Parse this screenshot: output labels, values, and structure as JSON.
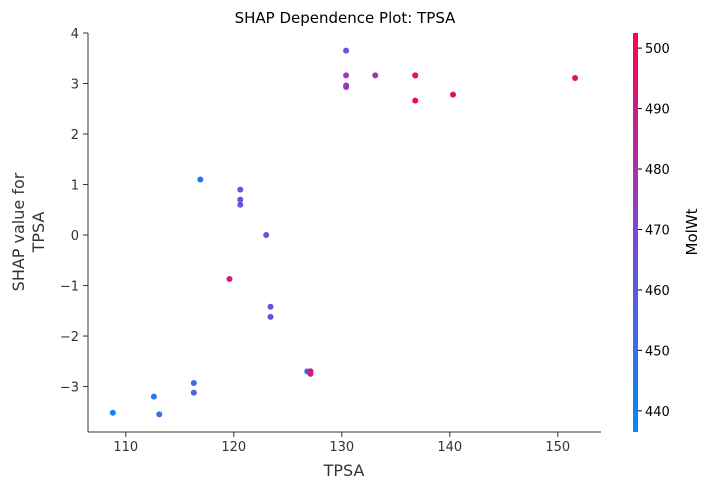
{
  "chart_data": {
    "type": "scatter",
    "title": "SHAP Dependence Plot: TPSA",
    "xlabel": "TPSA",
    "ylabel_lines": [
      "SHAP value for",
      "TPSA"
    ],
    "xlim": [
      106.5,
      154
    ],
    "ylim": [
      -3.9,
      4.0
    ],
    "x_ticks": [
      110,
      120,
      130,
      140,
      150
    ],
    "y_ticks": [
      -3,
      -2,
      -1,
      0,
      1,
      2,
      3,
      4
    ],
    "colorbar": {
      "label": "MolWt",
      "range": [
        436.5,
        502.5
      ],
      "ticks": [
        440,
        450,
        460,
        470,
        480,
        490,
        500
      ],
      "colors": [
        "#008afb",
        "#7f48d2",
        "#ff0052"
      ]
    },
    "grid": false,
    "points": [
      {
        "x": 108.8,
        "y": -3.52,
        "c": 442
      },
      {
        "x": 112.6,
        "y": -3.2,
        "c": 446
      },
      {
        "x": 113.1,
        "y": -3.55,
        "c": 452
      },
      {
        "x": 116.3,
        "y": -2.93,
        "c": 454
      },
      {
        "x": 116.3,
        "y": -3.12,
        "c": 455
      },
      {
        "x": 116.9,
        "y": 1.1,
        "c": 446
      },
      {
        "x": 119.6,
        "y": -0.87,
        "c": 492
      },
      {
        "x": 120.6,
        "y": 0.9,
        "c": 462
      },
      {
        "x": 120.6,
        "y": 0.7,
        "c": 462
      },
      {
        "x": 120.6,
        "y": 0.6,
        "c": 465
      },
      {
        "x": 123.0,
        "y": 0.0,
        "c": 462
      },
      {
        "x": 123.4,
        "y": -1.42,
        "c": 462
      },
      {
        "x": 123.4,
        "y": -1.62,
        "c": 465
      },
      {
        "x": 126.8,
        "y": -2.7,
        "c": 450
      },
      {
        "x": 127.1,
        "y": -2.7,
        "c": 496
      },
      {
        "x": 127.1,
        "y": -2.75,
        "c": 488
      },
      {
        "x": 130.4,
        "y": 3.65,
        "c": 463
      },
      {
        "x": 130.4,
        "y": 3.16,
        "c": 477
      },
      {
        "x": 130.4,
        "y": 2.96,
        "c": 482
      },
      {
        "x": 130.4,
        "y": 2.93,
        "c": 475
      },
      {
        "x": 133.1,
        "y": 3.16,
        "c": 478
      },
      {
        "x": 136.8,
        "y": 3.16,
        "c": 492
      },
      {
        "x": 136.8,
        "y": 3.16,
        "c": 496
      },
      {
        "x": 136.8,
        "y": 2.66,
        "c": 498
      },
      {
        "x": 140.3,
        "y": 2.78,
        "c": 495
      },
      {
        "x": 151.6,
        "y": 3.11,
        "c": 496
      }
    ]
  }
}
